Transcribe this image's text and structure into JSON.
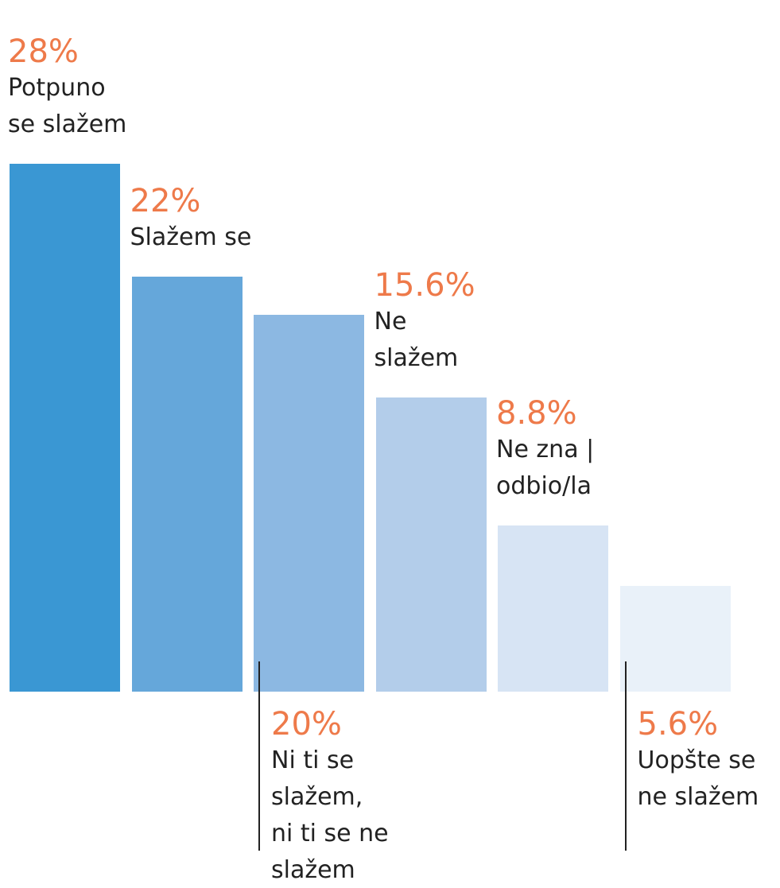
{
  "chart_data": {
    "type": "bar",
    "categories": [
      "Potpuno\nse slažem",
      "Slažem se",
      "Ni ti se\nslažem,\nni ti se ne\nslažem",
      "Ne\nslažem",
      "Ne zna |\nodbio/la",
      "Uopšte se\nne slažem"
    ],
    "values": [
      28,
      22,
      20,
      15.6,
      8.8,
      5.6
    ],
    "value_labels": [
      "28%",
      "22%",
      "20%",
      "15.6%",
      "8.8%",
      "5.6%"
    ],
    "colors": [
      "#3a97d3",
      "#65a7da",
      "#8cb8e2",
      "#b3cdea",
      "#d7e4f4",
      "#e9f1f9"
    ]
  }
}
